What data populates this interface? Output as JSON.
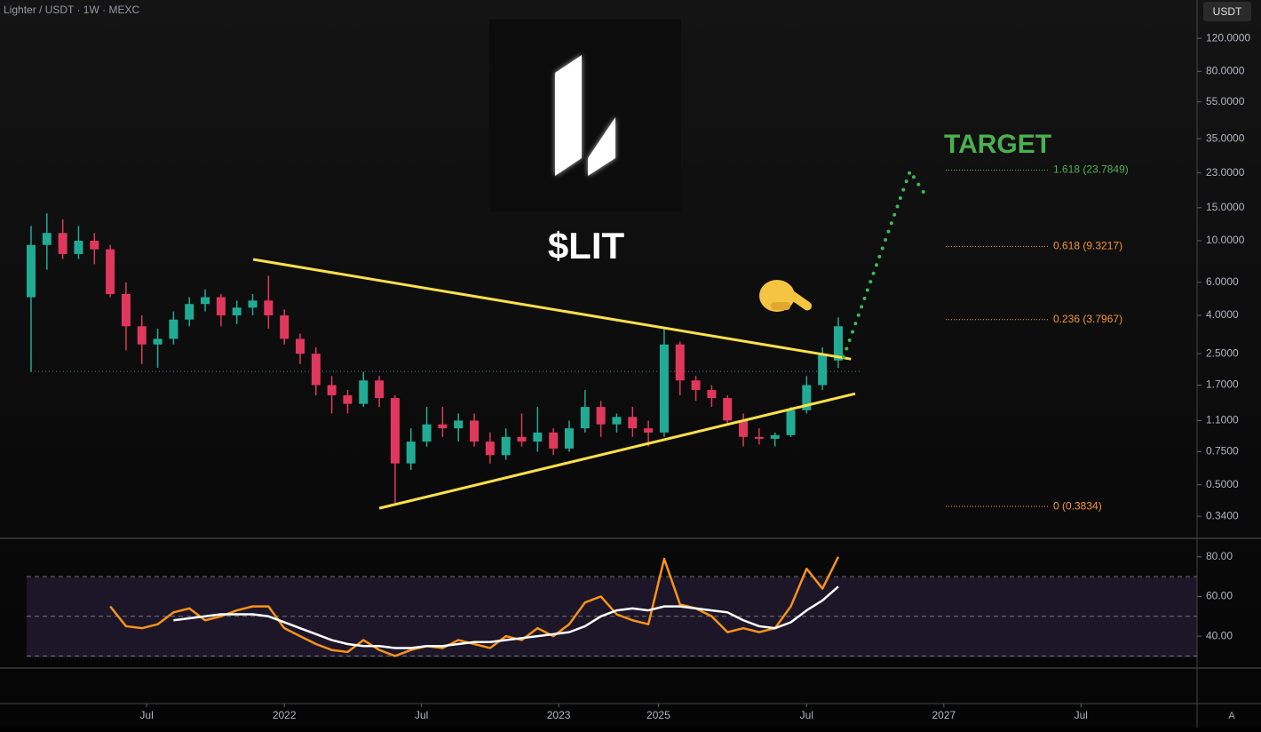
{
  "header": {
    "symbol": "Lighter / USDT · 1W · MEXC",
    "currency": "USDT"
  },
  "chart_data": [
    {
      "type": "candlestick",
      "title": "$LIT",
      "annotation": "TARGET",
      "log_scale": true,
      "x": [
        0,
        3,
        6,
        9,
        12,
        15,
        18,
        21,
        24,
        27,
        30,
        33,
        36,
        39,
        42,
        45,
        48,
        51,
        54,
        57,
        60,
        63,
        66,
        69,
        72,
        75,
        78,
        81,
        84,
        87,
        90,
        93,
        96,
        99,
        102,
        105,
        108,
        111,
        114,
        117,
        120,
        123,
        126,
        129,
        132,
        135,
        138,
        141,
        144,
        147,
        150,
        153
      ],
      "open": [
        5.0,
        9.5,
        11,
        8.5,
        10,
        9,
        5.2,
        3.5,
        2.8,
        3.0,
        3.8,
        4.6,
        5.0,
        4.0,
        4.4,
        4.8,
        4.0,
        3.0,
        2.5,
        1.7,
        1.5,
        1.35,
        1.8,
        1.45,
        0.65,
        0.85,
        1.05,
        1.0,
        1.1,
        0.85,
        0.72,
        0.9,
        0.85,
        0.95,
        0.78,
        1.0,
        1.3,
        1.05,
        1.15,
        1.0,
        0.95,
        2.8,
        1.8,
        1.6,
        1.45,
        1.1,
        0.9,
        0.88,
        0.92,
        1.25,
        1.7,
        2.3
      ],
      "high": [
        12,
        14,
        13,
        12,
        11,
        9.5,
        6,
        4,
        3.4,
        4.2,
        5.0,
        5.5,
        5.2,
        4.8,
        5.2,
        6.5,
        4.3,
        3.2,
        2.7,
        1.9,
        1.6,
        2.0,
        1.9,
        1.5,
        1.0,
        1.3,
        1.3,
        1.2,
        1.2,
        0.95,
        1.0,
        1.2,
        1.3,
        1.0,
        1.1,
        1.6,
        1.4,
        1.2,
        1.3,
        1.1,
        3.4,
        2.9,
        1.9,
        1.7,
        1.5,
        1.2,
        1.0,
        0.95,
        1.3,
        1.9,
        2.7,
        3.9
      ],
      "low": [
        2.0,
        7,
        8,
        8,
        7.5,
        5,
        2.6,
        2.2,
        2.1,
        2.8,
        3.5,
        4.2,
        3.5,
        3.6,
        4.0,
        3.4,
        2.8,
        2.2,
        1.5,
        1.2,
        1.2,
        1.3,
        1.3,
        0.4,
        0.6,
        0.8,
        0.9,
        0.85,
        0.8,
        0.65,
        0.68,
        0.8,
        0.75,
        0.72,
        0.75,
        0.95,
        0.9,
        0.95,
        0.9,
        0.8,
        0.9,
        1.5,
        1.4,
        1.3,
        1.05,
        0.8,
        0.82,
        0.8,
        0.9,
        1.2,
        1.6,
        2.1
      ],
      "close": [
        9.5,
        11,
        8.5,
        10,
        9,
        5.2,
        3.5,
        2.8,
        3.0,
        3.8,
        4.6,
        5.0,
        4.0,
        4.4,
        4.8,
        4.0,
        3.0,
        2.5,
        1.7,
        1.5,
        1.35,
        1.8,
        1.45,
        0.65,
        0.85,
        1.05,
        1.0,
        1.1,
        0.85,
        0.72,
        0.9,
        0.85,
        0.95,
        0.78,
        1.0,
        1.3,
        1.05,
        1.15,
        1.0,
        0.95,
        2.8,
        1.8,
        1.6,
        1.45,
        1.1,
        0.9,
        0.88,
        0.92,
        1.25,
        1.7,
        2.5,
        3.5
      ],
      "up_color": "#22ab94",
      "down_color": "#e0385c",
      "xlim": [
        -0.84,
        221
      ],
      "ylim": [
        0.262,
        192
      ],
      "yticks": [
        {
          "value": 120,
          "label": "120.0000"
        },
        {
          "value": 80,
          "label": "80.0000"
        },
        {
          "value": 55,
          "label": "55.0000"
        },
        {
          "value": 35,
          "label": "35.0000"
        },
        {
          "value": 23,
          "label": "23.0000"
        },
        {
          "value": 15,
          "label": "15.0000"
        },
        {
          "value": 10,
          "label": "10.0000"
        },
        {
          "value": 6,
          "label": "6.0000"
        },
        {
          "value": 4,
          "label": "4.0000"
        },
        {
          "value": 2.5,
          "label": "2.5000"
        },
        {
          "value": 1.7,
          "label": "1.7000"
        },
        {
          "value": 1.1,
          "label": "1.1000"
        },
        {
          "value": 0.75,
          "label": "0.7500"
        },
        {
          "value": 0.5,
          "label": "0.5000"
        },
        {
          "value": 0.34,
          "label": "0.3400"
        }
      ],
      "xticks": [
        {
          "value": 21.9,
          "label": "Jul"
        },
        {
          "value": 48,
          "label": "2022"
        },
        {
          "value": 74,
          "label": "Jul"
        },
        {
          "value": 100,
          "label": "2023"
        },
        {
          "value": 118.9,
          "label": "2025"
        },
        {
          "value": 147,
          "label": "Jul"
        },
        {
          "value": 173,
          "label": "2027"
        },
        {
          "value": 199,
          "label": "Jul"
        }
      ],
      "trendlines": [
        {
          "x": [
            42.1,
            155.4
          ],
          "y": [
            7.95,
            2.34
          ],
          "color": "#ffe04a"
        },
        {
          "x": [
            66,
            156.2
          ],
          "y": [
            0.375,
            1.53
          ],
          "color": "#ffe04a"
        }
      ],
      "projection": {
        "x": [
          154,
          166.6,
          169.5
        ],
        "y": [
          2.4,
          23.5,
          17.5
        ],
        "color": "#3fb950"
      },
      "reference_line": 2.01,
      "fib_levels": [
        {
          "value": 23.7849,
          "label": "1.618 (23.7849)",
          "color": "#4caf50"
        },
        {
          "value": 9.3217,
          "label": "0.618 (9.3217)",
          "color": "#f59331"
        },
        {
          "value": 3.7967,
          "label": "0.236 (3.7967)",
          "color": "#f59331"
        },
        {
          "value": 0.3834,
          "label": "0 (0.3834)",
          "color": "#f59331"
        }
      ]
    },
    {
      "type": "line",
      "x": [
        0,
        3,
        6,
        9,
        12,
        15,
        18,
        21,
        24,
        27,
        30,
        33,
        36,
        39,
        42,
        45,
        48,
        51,
        54,
        57,
        60,
        63,
        66,
        69,
        72,
        75,
        78,
        81,
        84,
        87,
        90,
        93,
        96,
        99,
        102,
        105,
        108,
        111,
        114,
        117,
        120,
        123,
        126,
        129,
        132,
        135,
        138,
        141,
        144,
        147,
        150,
        153
      ],
      "series": [
        {
          "color": "#f7931a",
          "values": [
            null,
            null,
            null,
            null,
            null,
            55,
            45,
            44,
            46,
            52,
            54,
            48,
            50,
            53,
            55,
            55,
            44,
            40,
            36,
            33,
            32,
            38,
            33,
            30,
            33,
            35,
            34,
            38,
            36,
            34,
            40,
            38,
            44,
            40,
            46,
            57,
            60,
            51,
            48,
            46,
            79,
            56,
            54,
            50,
            42,
            44,
            42,
            44,
            55,
            74,
            64,
            80
          ]
        },
        {
          "color": "#ffffff",
          "values": [
            null,
            null,
            null,
            null,
            null,
            null,
            null,
            null,
            null,
            48,
            49,
            50,
            51,
            51,
            51,
            50,
            47,
            44,
            41,
            38,
            36,
            35,
            35,
            34,
            34,
            35,
            35,
            36,
            37,
            37,
            38,
            39,
            40,
            41,
            42,
            45,
            50,
            53,
            54,
            53,
            55,
            55,
            54,
            53,
            52,
            48,
            45,
            44,
            47,
            53,
            58,
            65
          ]
        }
      ],
      "xlim": [
        -0.84,
        221
      ],
      "ylim": [
        23.9,
        88.9
      ],
      "yticks": [
        {
          "value": 80,
          "label": "80.00"
        },
        {
          "value": 60,
          "label": "60.00"
        },
        {
          "value": 40,
          "label": "40.00"
        }
      ],
      "levels": [
        70,
        50,
        30
      ]
    }
  ],
  "footer": {
    "corner": "A"
  }
}
